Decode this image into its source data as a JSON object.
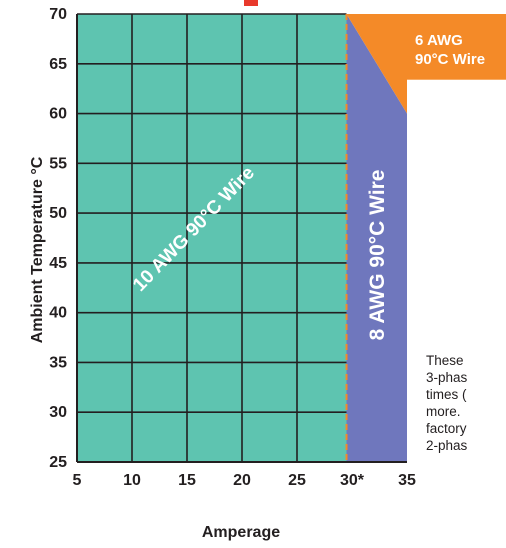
{
  "chart_data": {
    "type": "area",
    "xlabel": "Amperage",
    "ylabel": "Ambient Temperature °C",
    "xlim": [
      5,
      35
    ],
    "ylim": [
      25,
      70
    ],
    "x_ticks": [
      "5",
      "10",
      "15",
      "20",
      "25",
      "30*",
      "35"
    ],
    "y_ticks": [
      "25",
      "30",
      "35",
      "40",
      "45",
      "50",
      "55",
      "60",
      "65",
      "70"
    ],
    "grid": true,
    "regions": [
      {
        "label": "10 AWG 90°C Wire",
        "color": "#5ec4b0",
        "polygon": [
          [
            5,
            25
          ],
          [
            29.5,
            25
          ],
          [
            29.5,
            70
          ],
          [
            5,
            70
          ]
        ]
      },
      {
        "label": "8 AWG 90°C Wire",
        "color": "#6f77bd",
        "polygon": [
          [
            29.5,
            25
          ],
          [
            35,
            25
          ],
          [
            35,
            60
          ],
          [
            29.5,
            70
          ]
        ]
      },
      {
        "label": "6 AWG 90°C Wire",
        "color": "#f48a28",
        "polygon": [
          [
            29.5,
            70
          ],
          [
            35,
            70
          ],
          [
            35,
            60
          ]
        ]
      }
    ],
    "boundary": {
      "x": 29.5,
      "color": "#f48a28",
      "style": "dashed"
    }
  },
  "labels": {
    "awg10": "10 AWG 90°C Wire",
    "awg8": "8 AWG 90°C Wire",
    "awg6_line1": "6 AWG",
    "awg6_line2": "90°C Wire"
  },
  "side_note": [
    "These",
    "3-phas",
    "times (",
    "more.",
    "factory",
    "2-phas"
  ],
  "colors": {
    "teal": "#5ec4b0",
    "blue": "#6f77bd",
    "orange": "#f48a28",
    "grid": "#231f20",
    "title_fragment": "#e8392c"
  }
}
